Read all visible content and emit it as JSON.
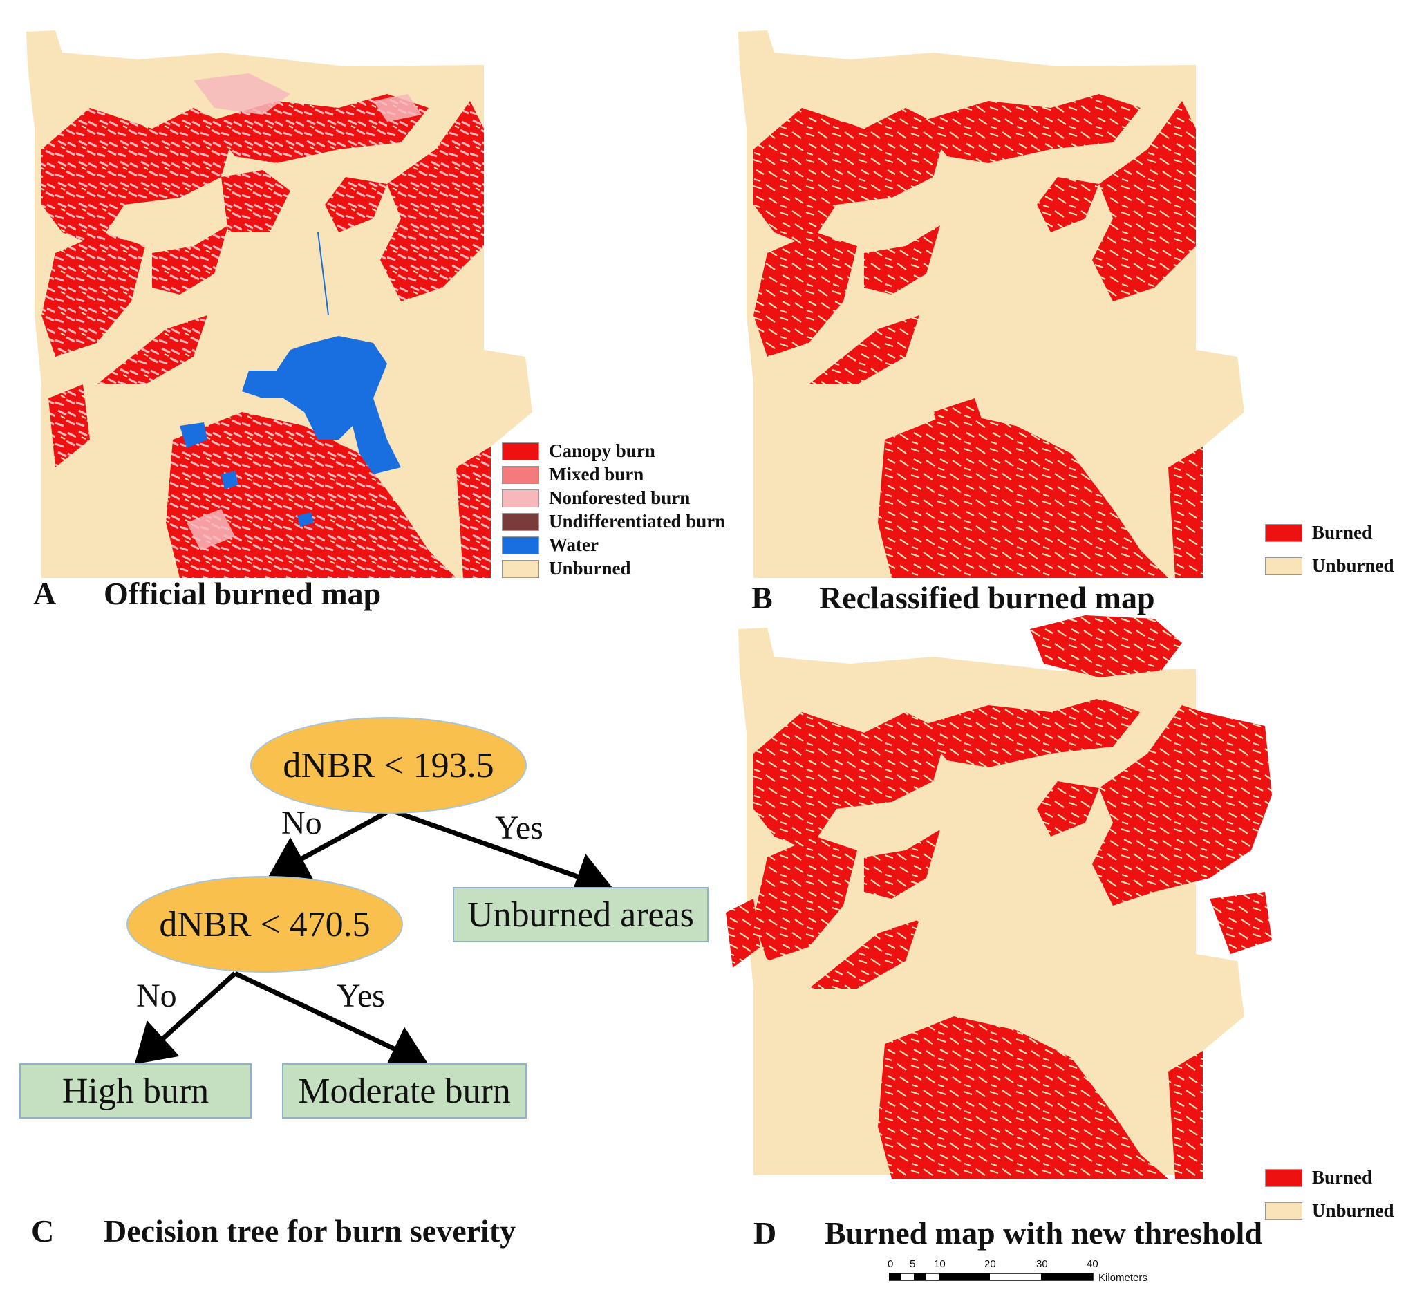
{
  "colors": {
    "unburned": "#f9e3b8",
    "canopy_burn": "#ee1111",
    "mixed_burn": "#f47b7b",
    "nonforested_burn": "#f7b8bc",
    "undifferentiated_burn": "#7a3b3b",
    "water": "#1a6fe0",
    "burned": "#ee1111",
    "tree_condition": "#f9c04d",
    "tree_leaf": "#c5e0c0"
  },
  "panel_a": {
    "letter": "A",
    "title": "Official burned map",
    "legend": [
      {
        "label": "Canopy burn",
        "color": "#ee1111"
      },
      {
        "label": "Mixed burn",
        "color": "#f47b7b"
      },
      {
        "label": "Nonforested burn",
        "color": "#f7b8bc"
      },
      {
        "label": "Undifferentiated burn",
        "color": "#7a3b3b"
      },
      {
        "label": "Water",
        "color": "#1a6fe0"
      },
      {
        "label": "Unburned",
        "color": "#f9e3b8"
      }
    ]
  },
  "panel_b": {
    "letter": "B",
    "title": "Reclassified burned map",
    "legend": [
      {
        "label": "Burned",
        "color": "#ee1111"
      },
      {
        "label": "Unburned",
        "color": "#f9e3b8"
      }
    ]
  },
  "panel_c": {
    "letter": "C",
    "title": "Decision tree for burn severity",
    "tree": {
      "root": "dNBR < 193.5",
      "root_no": "No",
      "root_yes": "Yes",
      "inner": "dNBR < 470.5",
      "inner_no": "No",
      "inner_yes": "Yes",
      "leaf_unburned": "Unburned areas",
      "leaf_high": "High burn",
      "leaf_moderate": "Moderate burn"
    }
  },
  "panel_d": {
    "letter": "D",
    "title": "Burned map with new threshold",
    "legend": [
      {
        "label": "Burned",
        "color": "#ee1111"
      },
      {
        "label": "Unburned",
        "color": "#f9e3b8"
      }
    ]
  },
  "scale_bar": {
    "ticks": [
      "0",
      "5",
      "10",
      "20",
      "30",
      "40"
    ],
    "unit": "Kilometers"
  }
}
